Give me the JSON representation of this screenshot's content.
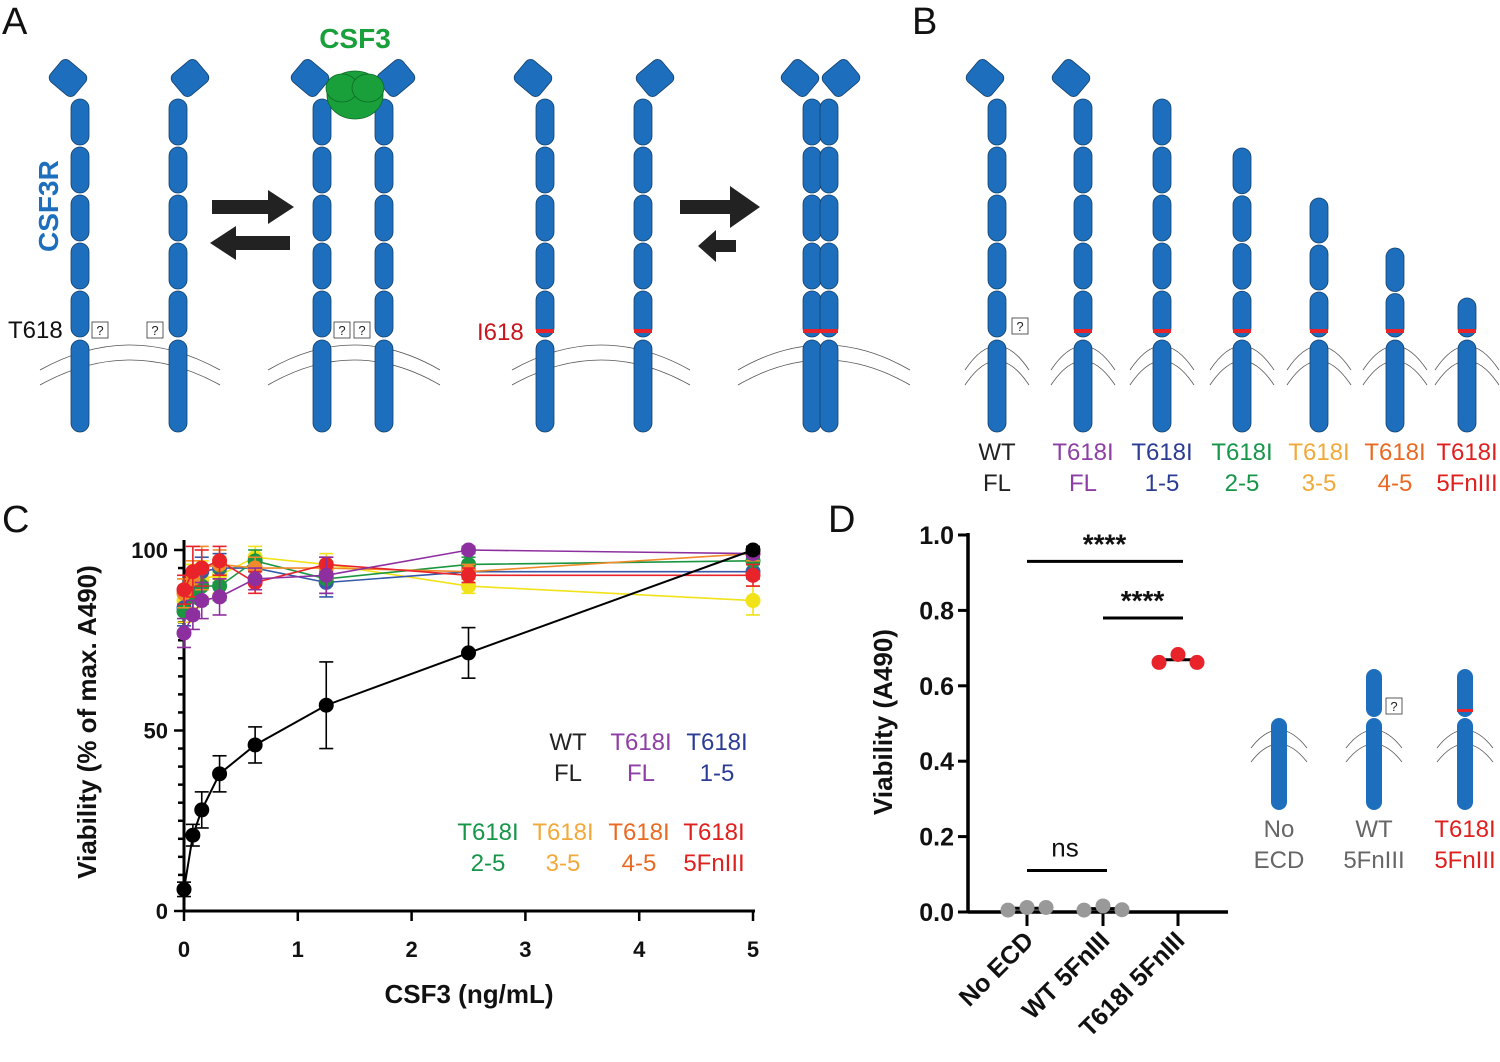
{
  "panels": {
    "A": {
      "letter": "A",
      "ligand": "CSF3",
      "receptor": "CSF3R",
      "wt_residue": "T618",
      "mut_residue": "I618",
      "unknown_mark": "?"
    },
    "B": {
      "letter": "B",
      "constructs": [
        {
          "line1": "WT",
          "line2": "FL",
          "color": "#222222"
        },
        {
          "line1": "T618I",
          "line2": "FL",
          "color": "#8e3fa6"
        },
        {
          "line1": "T618I",
          "line2": "1-5",
          "color": "#2b3c94"
        },
        {
          "line1": "T618I",
          "line2": "2-5",
          "color": "#17964a"
        },
        {
          "line1": "T618I",
          "line2": "3-5",
          "color": "#f2a93b"
        },
        {
          "line1": "T618I",
          "line2": "4-5",
          "color": "#ea6a23"
        },
        {
          "line1": "T618I",
          "line2": "5FnIII",
          "color": "#e0201e"
        }
      ]
    },
    "C": {
      "letter": "C"
    },
    "D": {
      "letter": "D",
      "constructs": [
        {
          "line1": "No",
          "line2": "ECD",
          "color": "#666666"
        },
        {
          "line1": "WT",
          "line2": "5FnIII",
          "color": "#666666"
        },
        {
          "line1": "T618I",
          "line2": "5FnIII",
          "color": "#e0201e"
        }
      ]
    }
  },
  "colors": {
    "receptor": "#1d6fbd",
    "ligand": "#1aa03a",
    "mutation": "#e8232a",
    "membrane": "#555555"
  },
  "chart_data": [
    {
      "type": "line",
      "panel": "C",
      "xlabel": "CSF3 (ng/mL)",
      "ylabel": "Viability (% of max. A490)",
      "xlim": [
        0,
        5
      ],
      "ylim": [
        0,
        100
      ],
      "xticks": [
        "0",
        "1",
        "2",
        "3",
        "4",
        "5"
      ],
      "yticks": [
        "0",
        "50",
        "100"
      ],
      "x": [
        0,
        0.078,
        0.156,
        0.3125,
        0.625,
        1.25,
        2.5,
        5
      ],
      "legend_placement": "inside-right",
      "series": [
        {
          "name": "WT FL",
          "legend": [
            "WT",
            "FL"
          ],
          "color": "#000000",
          "legend_color": "#222222",
          "values": [
            6,
            21,
            28,
            38,
            46,
            57,
            71.5,
            100
          ],
          "err": [
            2,
            3,
            5,
            5,
            5,
            12,
            7,
            1
          ]
        },
        {
          "name": "T618I FL",
          "legend": [
            "T618I",
            "FL"
          ],
          "color": "#8e2fa0",
          "legend_color": "#8e3fa6",
          "values": [
            77,
            82,
            86,
            87,
            92,
            93,
            100,
            99
          ],
          "err": [
            4,
            4,
            5,
            5,
            3,
            5,
            1,
            1
          ]
        },
        {
          "name": "T618I 1-5",
          "legend": [
            "T618I",
            "1-5"
          ],
          "color": "#3558a8",
          "legend_color": "#2b3c94",
          "values": [
            84,
            88,
            94,
            95,
            95,
            91,
            94,
            94
          ],
          "err": [
            5,
            5,
            4,
            4,
            3,
            4,
            2,
            2
          ]
        },
        {
          "name": "T618I 2-5",
          "legend": [
            "T618I",
            "2-5"
          ],
          "color": "#1a9641",
          "legend_color": "#17964a",
          "values": [
            83,
            87,
            90,
            90,
            97,
            92,
            96,
            97
          ],
          "err": [
            6,
            5,
            5,
            4,
            3,
            4,
            2,
            1
          ]
        },
        {
          "name": "T618I 3-5",
          "legend": [
            "T618I",
            "3-5"
          ],
          "color": "#f2e21a",
          "legend_color": "#f2a93b",
          "values": [
            86,
            90,
            92,
            93,
            98,
            96,
            90,
            86
          ],
          "err": [
            6,
            6,
            5,
            5,
            3,
            3,
            2,
            4
          ]
        },
        {
          "name": "T618I 4-5",
          "legend": [
            "T618I",
            "4-5"
          ],
          "color": "#f08a2a",
          "legend_color": "#ea6a23",
          "values": [
            88,
            92,
            95,
            96,
            95,
            95,
            94,
            99
          ],
          "err": [
            4,
            5,
            6,
            4,
            3,
            3,
            2,
            2
          ]
        },
        {
          "name": "T618I 5FnIII",
          "legend": [
            "T618I",
            "5FnIII"
          ],
          "color": "#e8232a",
          "legend_color": "#e0201e",
          "values": [
            89,
            94,
            95,
            97,
            91,
            96,
            93,
            93
          ],
          "err": [
            4,
            7,
            5,
            4,
            3,
            2,
            2,
            3
          ]
        }
      ]
    },
    {
      "type": "scatter",
      "panel": "D",
      "ylabel": "Viability (A490)",
      "ylim": [
        0,
        1.0
      ],
      "yticks": [
        "0.0",
        "0.2",
        "0.4",
        "0.6",
        "0.8",
        "1.0"
      ],
      "categories": [
        "No ECD",
        "WT 5FnIII",
        "T618I 5FnIII"
      ],
      "series": [
        {
          "category": "No ECD",
          "color": "#999999",
          "values": [
            0.005,
            0.012,
            0.012
          ],
          "mean": 0.01
        },
        {
          "category": "WT 5FnIII",
          "color": "#999999",
          "values": [
            0.005,
            0.016,
            0.006
          ],
          "mean": 0.009
        },
        {
          "category": "T618I 5FnIII",
          "color": "#e8232a",
          "values": [
            0.662,
            0.683,
            0.662
          ],
          "mean": 0.669
        }
      ],
      "significance": [
        {
          "from": "No ECD",
          "to": "T618I 5FnIII",
          "label": "****",
          "y": 0.93
        },
        {
          "from": "WT 5FnIII",
          "to": "T618I 5FnIII",
          "label": "****",
          "y": 0.78
        },
        {
          "from": "No ECD",
          "to": "WT 5FnIII",
          "label": "ns",
          "y": 0.11
        }
      ]
    }
  ]
}
